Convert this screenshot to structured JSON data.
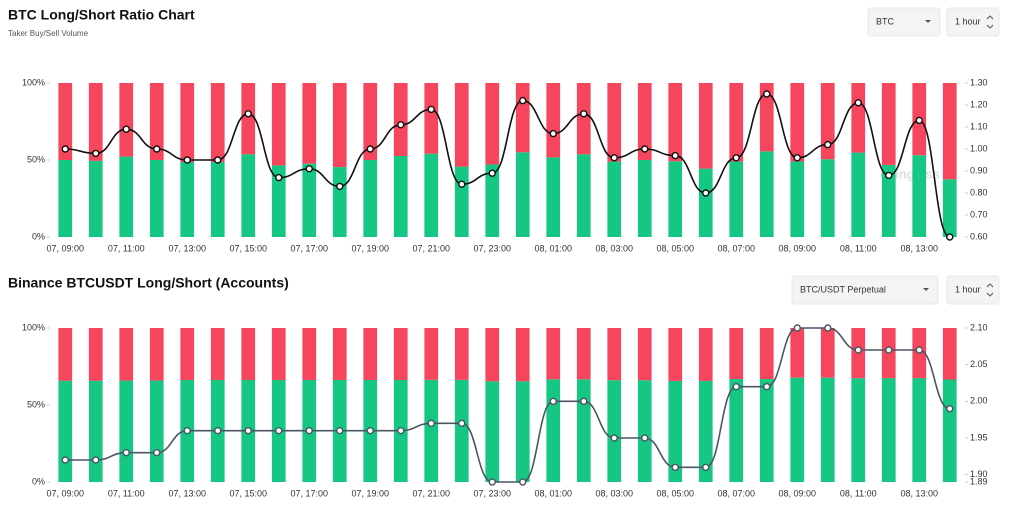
{
  "chart_data": [
    {
      "type": "bar",
      "title": "BTC Long/Short Ratio Chart",
      "subtitle": "Taker Buy/Sell Volume",
      "controls": [
        "BTC",
        "1 hour"
      ],
      "watermark": "coinglass",
      "categories": [
        "07, 09:00",
        null,
        "07, 11:00",
        null,
        "07, 13:00",
        null,
        "07, 15:00",
        null,
        "07, 17:00",
        null,
        "07, 19:00",
        null,
        "07, 21:00",
        null,
        "07, 23:00",
        null,
        "08, 01:00",
        null,
        "08, 03:00",
        null,
        "08, 05:00",
        null,
        "08, 07:00",
        null,
        "08, 09:00",
        null,
        "08, 11:00",
        null,
        "08, 13:00",
        null
      ],
      "series": [
        {
          "color": "#16c784",
          "values": [
            50,
            49.5,
            52.2,
            50,
            48.7,
            48.7,
            53.7,
            46.5,
            47.6,
            45.4,
            50,
            52.6,
            54.1,
            45.7,
            47.1,
            55,
            51.7,
            53.7,
            49,
            50,
            49.2,
            44.4,
            49,
            55.6,
            49,
            50.5,
            54.8,
            46.8,
            53.1,
            37.5
          ]
        },
        {
          "color": "#f6465d",
          "values": [
            50,
            50.5,
            47.8,
            50,
            51.3,
            51.3,
            46.3,
            53.5,
            52.4,
            54.6,
            50,
            47.4,
            45.9,
            54.3,
            52.9,
            45,
            48.3,
            46.3,
            51,
            50,
            50.8,
            55.6,
            51,
            44.4,
            51,
            49.5,
            45.2,
            53.2,
            46.9,
            62.5
          ]
        },
        {
          "color": "#111111",
          "axis": "y2",
          "values": [
            1.0,
            0.98,
            1.09,
            1.0,
            0.95,
            0.95,
            1.16,
            0.87,
            0.91,
            0.83,
            1.0,
            1.11,
            1.18,
            0.84,
            0.89,
            1.22,
            1.07,
            1.16,
            0.96,
            1.0,
            0.97,
            0.8,
            0.96,
            1.25,
            0.96,
            1.02,
            1.21,
            0.88,
            1.13,
            0.6
          ]
        }
      ],
      "ylim": [
        0,
        100
      ],
      "yticks": [
        {
          "value": 0,
          "label": "0%"
        },
        {
          "value": 50,
          "label": "50%"
        },
        {
          "value": 100,
          "label": "100%"
        }
      ],
      "y2lim": [
        0.6,
        1.3
      ],
      "y2ticks": [
        {
          "value": 0.6,
          "label": "0.60"
        },
        {
          "value": 0.7,
          "label": "0.70"
        },
        {
          "value": 0.8,
          "label": "0.80"
        },
        {
          "value": 0.9,
          "label": "0.90"
        },
        {
          "value": 1.0,
          "label": "1.00"
        },
        {
          "value": 1.1,
          "label": "1.10"
        },
        {
          "value": 1.2,
          "label": "1.20"
        },
        {
          "value": 1.3,
          "label": "1.30"
        }
      ]
    },
    {
      "type": "bar",
      "title": "Binance BTCUSDT Long/Short (Accounts)",
      "controls": [
        "BTC/USDT Perpetual",
        "1 hour"
      ],
      "categories": [
        "07, 09:00",
        null,
        "07, 11:00",
        null,
        "07, 13:00",
        null,
        "07, 15:00",
        null,
        "07, 17:00",
        null,
        "07, 19:00",
        null,
        "07, 21:00",
        null,
        "07, 23:00",
        null,
        "08, 01:00",
        null,
        "08, 03:00",
        null,
        "08, 05:00",
        null,
        "08, 07:00",
        null,
        "08, 09:00",
        null,
        "08, 11:00",
        null,
        "08, 13:00",
        null
      ],
      "series": [
        {
          "color": "#16c784",
          "values": [
            65.75,
            65.75,
            65.87,
            65.87,
            66.22,
            66.22,
            66.22,
            66.22,
            66.22,
            66.22,
            66.22,
            66.22,
            66.33,
            66.33,
            65.4,
            65.4,
            66.67,
            66.67,
            66.1,
            66.1,
            65.64,
            65.64,
            66.89,
            66.89,
            67.74,
            67.74,
            67.43,
            67.43,
            67.43,
            66.56
          ]
        },
        {
          "color": "#f6465d",
          "values": [
            34.25,
            34.25,
            34.13,
            34.13,
            33.78,
            33.78,
            33.78,
            33.78,
            33.78,
            33.78,
            33.78,
            33.78,
            33.67,
            33.67,
            34.6,
            34.6,
            33.33,
            33.33,
            33.9,
            33.9,
            34.36,
            34.36,
            33.11,
            33.11,
            32.26,
            32.26,
            32.57,
            32.57,
            32.57,
            33.44
          ]
        },
        {
          "color": "#4b5563",
          "axis": "y2",
          "values": [
            1.92,
            1.92,
            1.93,
            1.93,
            1.96,
            1.96,
            1.96,
            1.96,
            1.96,
            1.96,
            1.96,
            1.96,
            1.97,
            1.97,
            1.89,
            1.89,
            2.0,
            2.0,
            1.95,
            1.95,
            1.91,
            1.91,
            2.02,
            2.02,
            2.1,
            2.1,
            2.07,
            2.07,
            2.07,
            1.99
          ]
        }
      ],
      "ylim": [
        0,
        100
      ],
      "yticks": [
        {
          "value": 0,
          "label": "0%"
        },
        {
          "value": 50,
          "label": "50%"
        },
        {
          "value": 100,
          "label": "100%"
        }
      ],
      "y2lim": [
        1.89,
        2.1
      ],
      "y2ticks": [
        1.89,
        {
          "value": 1.9,
          "label": "1.90"
        },
        1.95,
        {
          "value": 2.0,
          "label": "2.00"
        },
        2.05,
        {
          "value": 2.1,
          "label": "2.10"
        }
      ]
    }
  ]
}
